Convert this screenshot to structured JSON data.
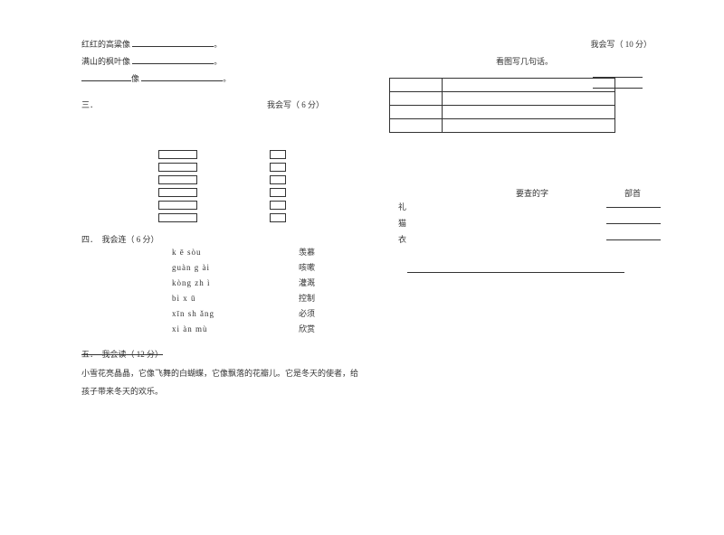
{
  "fill": {
    "l1_a": "红红的高粱像",
    "l2_a": "满山的枫叶像",
    "l3_b": "像",
    "period": "。"
  },
  "sec3": {
    "label": "三．",
    "title": "我会写（ 6 分）"
  },
  "sec4": {
    "label": "四．　我会连（ 6 分）",
    "rows": [
      {
        "py": "k ē sòu",
        "cn": "羡慕"
      },
      {
        "py": "guàn g ài",
        "cn": "咳嗽"
      },
      {
        "py": "kòng zh ì",
        "cn": "灌溉"
      },
      {
        "py": "bì x ū",
        "cn": "控制"
      },
      {
        "py": "xīn sh ǎng",
        "cn": "必须"
      },
      {
        "py": "xi àn mù",
        "cn": "欣赏"
      }
    ]
  },
  "sec5": {
    "label": "五．　我会读（ 12 分）",
    "text": "小雪花亮晶晶，它像飞舞的白蝴蝶，它像飘落的花瓣儿。它是冬天的使者，给孩子带来冬天的欢乐。"
  },
  "right": {
    "title": "我会写（ 10 分）",
    "sub": "看图写几句话。"
  },
  "lookup": {
    "h1": "要查的字",
    "h2": "部首",
    "chars": [
      "礼",
      "猫",
      "衣"
    ]
  }
}
